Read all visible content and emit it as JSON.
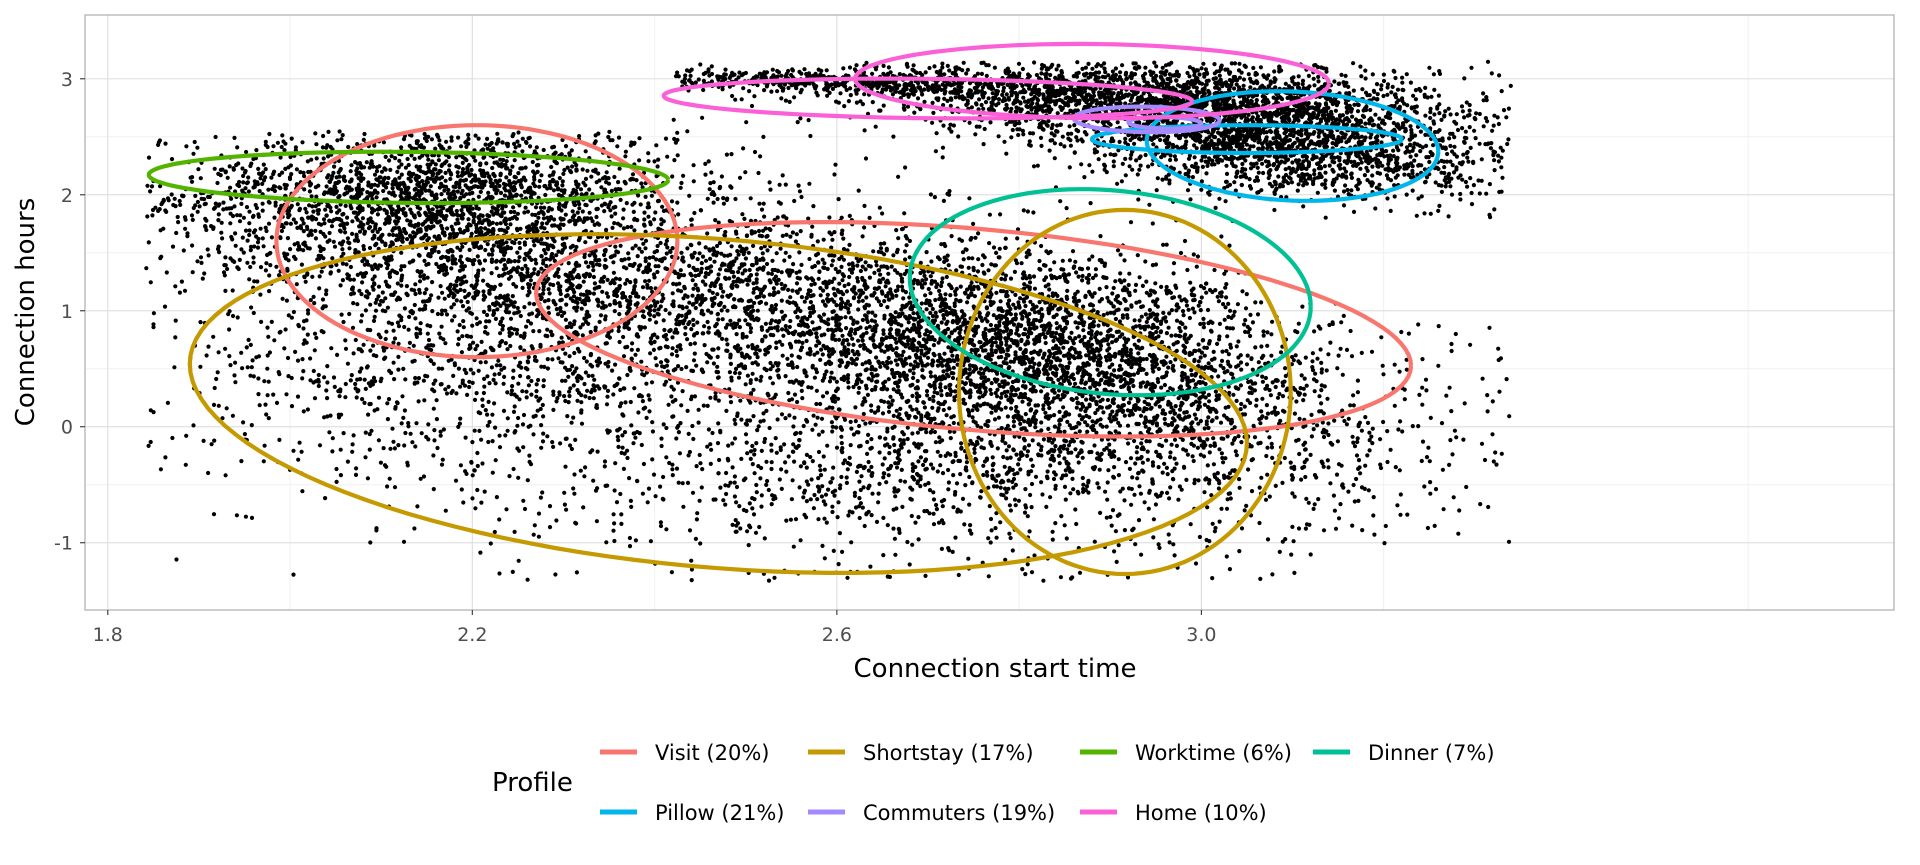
{
  "chart_data": {
    "type": "scatter",
    "xlabel": "Connection start time",
    "ylabel": "Connection hours",
    "xlim": [
      1.775,
      3.76
    ],
    "ylim": [
      -1.58,
      3.55
    ],
    "xticks": [
      {
        "value": 1.8,
        "label": "1.8"
      },
      {
        "value": 2.2,
        "label": "2.2"
      },
      {
        "value": 2.6,
        "label": "2.6"
      },
      {
        "value": 3.0,
        "label": "3.0"
      }
    ],
    "xminor": [
      2.0,
      2.4,
      2.8,
      3.2,
      3.6
    ],
    "yticks": [
      {
        "value": -1,
        "label": "-1"
      },
      {
        "value": 0,
        "label": "0"
      },
      {
        "value": 1,
        "label": "1"
      },
      {
        "value": 2,
        "label": "2"
      },
      {
        "value": 3,
        "label": "3"
      }
    ],
    "yminor": [
      -0.5,
      0.5,
      1.5,
      2.5
    ],
    "grid": true,
    "legend": {
      "title": "Profile",
      "position": "bottom",
      "entries": [
        {
          "label": "Visit (20%)",
          "color": "#F8766D"
        },
        {
          "label": "Shortstay (17%)",
          "color": "#C49A00"
        },
        {
          "label": "Worktime (6%)",
          "color": "#53B400"
        },
        {
          "label": "Dinner (7%)",
          "color": "#00C094"
        },
        {
          "label": "Pillow (21%)",
          "color": "#00B6EB"
        },
        {
          "label": "Commuters (19%)",
          "color": "#A58AFF"
        },
        {
          "label": "Home (10%)",
          "color": "#FB61D7"
        }
      ]
    },
    "point_color": "#000000",
    "point_clusters": [
      {
        "cx": 2.15,
        "cy": 2.05,
        "sx": 0.14,
        "sy": 0.28,
        "rho": 0.1,
        "n": 1500
      },
      {
        "cx": 2.2,
        "cy": 1.4,
        "sx": 0.17,
        "sy": 0.45,
        "rho": -0.3,
        "n": 1400
      },
      {
        "cx": 2.55,
        "cy": 1.0,
        "sx": 0.22,
        "sy": 0.55,
        "rho": -0.5,
        "n": 2200
      },
      {
        "cx": 2.85,
        "cy": 0.65,
        "sx": 0.15,
        "sy": 0.45,
        "rho": -0.2,
        "n": 2500
      },
      {
        "cx": 2.78,
        "cy": -0.3,
        "sx": 0.28,
        "sy": 0.45,
        "rho": 0.1,
        "n": 1600
      },
      {
        "cx": 2.2,
        "cy": 0.4,
        "sx": 0.18,
        "sy": 0.45,
        "rho": 0.2,
        "n": 700
      },
      {
        "cx": 2.95,
        "cy": 2.82,
        "sx": 0.17,
        "sy": 0.18,
        "rho": -0.3,
        "n": 2400
      },
      {
        "cx": 3.1,
        "cy": 2.4,
        "sx": 0.12,
        "sy": 0.22,
        "rho": -0.3,
        "n": 1500
      },
      {
        "cx": 2.6,
        "cy": 2.97,
        "sx": 0.12,
        "sy": 0.05,
        "rho": -0.4,
        "n": 500
      }
    ],
    "ellipses": [
      {
        "profile": "Visit (20%)",
        "color": "#F8766D",
        "cx": 2.205,
        "cy": 1.6,
        "rx": 0.22,
        "ry": 1.0,
        "rotate": 0
      },
      {
        "profile": "Visit (20%)",
        "color": "#F8766D",
        "cx": 2.75,
        "cy": 0.84,
        "rx": 0.48,
        "ry": 0.87,
        "rotate": -0.18
      },
      {
        "profile": "Shortstay (17%)",
        "color": "#C49A00",
        "cx": 2.47,
        "cy": 0.2,
        "rx": 0.58,
        "ry": 1.42,
        "rotate": -0.12
      },
      {
        "profile": "Shortstay (17%)",
        "color": "#C49A00",
        "cx": 2.916,
        "cy": 0.3,
        "rx": 0.182,
        "ry": 1.57,
        "rotate": 0
      },
      {
        "profile": "Worktime (6%)",
        "color": "#53B400",
        "cx": 2.13,
        "cy": 2.15,
        "rx": 0.285,
        "ry": 0.22,
        "rotate": -0.05
      },
      {
        "profile": "Dinner (7%)",
        "color": "#00C094",
        "cx": 2.9,
        "cy": 1.16,
        "rx": 0.22,
        "ry": 0.88,
        "rotate": -0.07
      },
      {
        "profile": "Pillow (21%)",
        "color": "#00B6EB",
        "cx": 3.1,
        "cy": 2.42,
        "rx": 0.16,
        "ry": 0.47,
        "rotate": -0.05
      },
      {
        "profile": "Pillow (21%)",
        "color": "#00B6EB",
        "cx": 3.05,
        "cy": 2.48,
        "rx": 0.17,
        "ry": 0.12,
        "rotate": 0
      },
      {
        "profile": "Commuters (19%)",
        "color": "#A58AFF",
        "cx": 2.94,
        "cy": 2.65,
        "rx": 0.08,
        "ry": 0.11,
        "rotate": -0.04
      },
      {
        "profile": "Commuters (19%)",
        "color": "#A58AFF",
        "cx": 2.96,
        "cy": 2.62,
        "rx": 0.04,
        "ry": 0.05,
        "rotate": -0.06
      },
      {
        "profile": "Home (10%)",
        "color": "#FB61D7",
        "cx": 2.88,
        "cy": 2.98,
        "rx": 0.26,
        "ry": 0.32,
        "rotate": -0.03
      },
      {
        "profile": "Home (10%)",
        "color": "#FB61D7",
        "cx": 2.7,
        "cy": 2.83,
        "rx": 0.29,
        "ry": 0.17,
        "rotate": -0.07
      }
    ]
  }
}
